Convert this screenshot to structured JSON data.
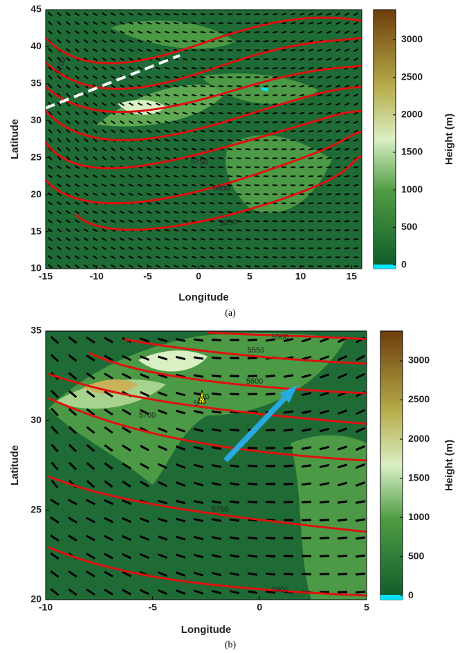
{
  "panels": [
    {
      "caption": "(a)",
      "x_label": "Longitude",
      "y_label": "Latitude",
      "xlim": [
        -15,
        16
      ],
      "ylim": [
        10,
        45
      ],
      "xticks": [
        -15,
        -10,
        -5,
        0,
        5,
        10,
        15
      ],
      "yticks": [
        10,
        15,
        20,
        25,
        30,
        35,
        40,
        45
      ],
      "colorbar": {
        "label": "Height (m)",
        "lim": [
          -50,
          3400
        ],
        "ticks": [
          0,
          500,
          1000,
          1500,
          2000,
          2500,
          3000
        ]
      },
      "contour_labels": [
        5700,
        5750,
        5800,
        5850
      ]
    },
    {
      "caption": "(b)",
      "x_label": "Longitude",
      "y_label": "Latitude",
      "xlim": [
        -10,
        5
      ],
      "ylim": [
        20,
        35
      ],
      "xticks": [
        -10,
        -5,
        0,
        5
      ],
      "yticks": [
        20,
        25,
        30,
        35
      ],
      "colorbar": {
        "label": "Height (m)",
        "lim": [
          -50,
          3380
        ],
        "ticks": [
          0,
          500,
          1000,
          1500,
          2000,
          2500,
          3000
        ]
      },
      "contour_labels": [
        5500,
        5550,
        5600,
        5650,
        5700,
        5750,
        5800
      ]
    }
  ]
}
